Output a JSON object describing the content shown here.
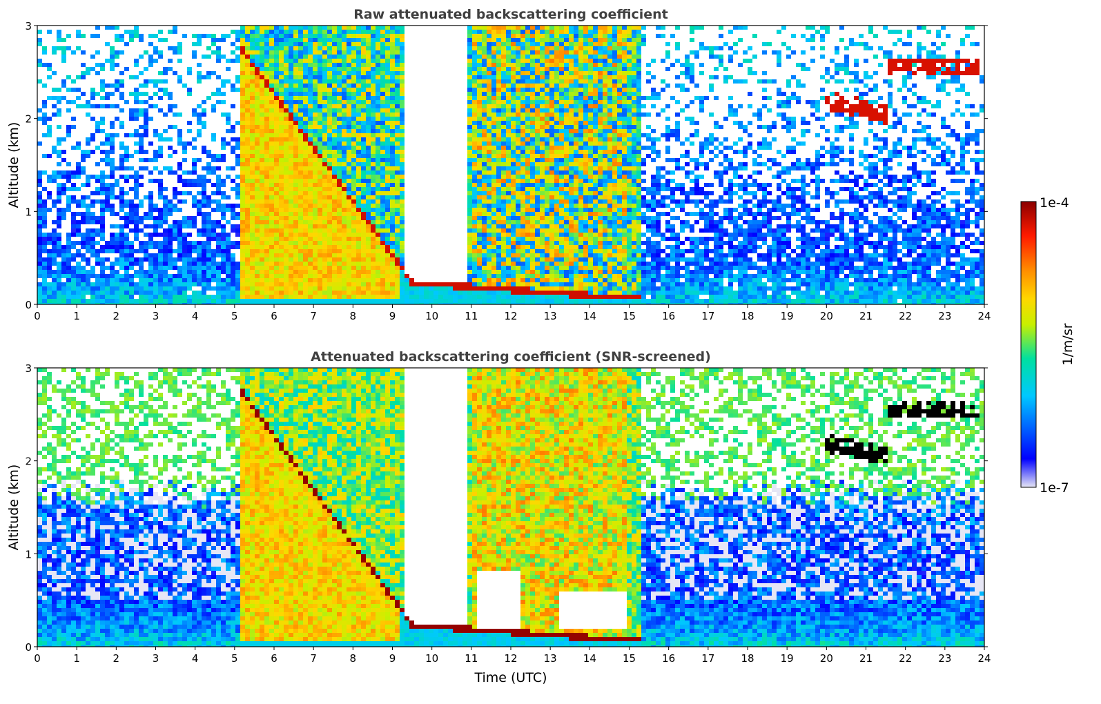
{
  "chart_data": [
    {
      "type": "heatmap",
      "title": "Raw attenuated backscattering coefficient",
      "xlabel": "",
      "ylabel": "Altitude (km)",
      "xlim": [
        0,
        24
      ],
      "ylim": [
        0,
        3
      ],
      "xticks": [
        "0",
        "1",
        "2",
        "3",
        "4",
        "5",
        "6",
        "7",
        "8",
        "9",
        "10",
        "11",
        "12",
        "13",
        "14",
        "15",
        "16",
        "17",
        "18",
        "19",
        "20",
        "21",
        "22",
        "23",
        "24"
      ],
      "yticks": [
        "0",
        "1",
        "2",
        "3"
      ],
      "screened": false
    },
    {
      "type": "heatmap",
      "title": "Attenuated backscattering coefficient (SNR-screened)",
      "xlabel": "Time (UTC)",
      "ylabel": "Altitude (km)",
      "xlim": [
        0,
        24
      ],
      "ylim": [
        0,
        3
      ],
      "xticks": [
        "0",
        "1",
        "2",
        "3",
        "4",
        "5",
        "6",
        "7",
        "8",
        "9",
        "10",
        "11",
        "12",
        "13",
        "14",
        "15",
        "16",
        "17",
        "18",
        "19",
        "20",
        "21",
        "22",
        "23",
        "24"
      ],
      "yticks": [
        "0",
        "1",
        "2",
        "3"
      ],
      "screened": true
    }
  ],
  "colorbar": {
    "label": "1/m/sr",
    "max_label": "1e-4",
    "min_label": "1e-7",
    "scale": "log",
    "colormap": [
      "#e6e6f5",
      "#0000ff",
      "#00c8ff",
      "#00e0a0",
      "#c8f000",
      "#ffd700",
      "#ff8c00",
      "#ff1a00",
      "#8b0000"
    ]
  }
}
